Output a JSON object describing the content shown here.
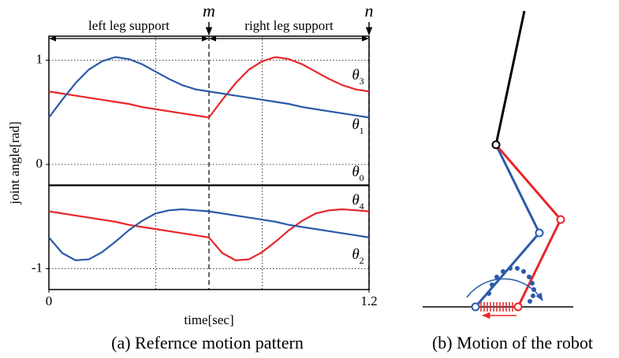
{
  "chart_data": {
    "type": "line",
    "x": [
      0,
      0.05,
      0.1,
      0.15,
      0.2,
      0.25,
      0.3,
      0.35,
      0.4,
      0.45,
      0.5,
      0.55,
      0.6,
      0.65,
      0.7,
      0.75,
      0.8,
      0.85,
      0.9,
      0.95,
      1.0,
      1.05,
      1.1,
      1.15,
      1.2
    ],
    "series": [
      {
        "name": "θ3",
        "color": "#e8262a",
        "values": [
          0.7,
          0.68,
          0.66,
          0.64,
          0.62,
          0.6,
          0.58,
          0.55,
          0.53,
          0.51,
          0.49,
          0.47,
          0.45,
          0.62,
          0.78,
          0.91,
          0.99,
          1.03,
          1.01,
          0.96,
          0.89,
          0.82,
          0.76,
          0.72,
          0.7
        ]
      },
      {
        "name": "θ1",
        "color": "#2a5aa8",
        "values": [
          0.45,
          0.62,
          0.78,
          0.91,
          0.99,
          1.03,
          1.01,
          0.96,
          0.89,
          0.82,
          0.76,
          0.72,
          0.7,
          0.68,
          0.66,
          0.64,
          0.62,
          0.6,
          0.58,
          0.55,
          0.53,
          0.51,
          0.49,
          0.47,
          0.45
        ]
      },
      {
        "name": "θ0",
        "color": "#000000",
        "values": [
          -0.2,
          -0.2,
          -0.2,
          -0.2,
          -0.2,
          -0.2,
          -0.2,
          -0.2,
          -0.2,
          -0.2,
          -0.2,
          -0.2,
          -0.2,
          -0.2,
          -0.2,
          -0.2,
          -0.2,
          -0.2,
          -0.2,
          -0.2,
          -0.2,
          -0.2,
          -0.2,
          -0.2,
          -0.2
        ]
      },
      {
        "name": "θ4",
        "color": "#e8262a",
        "values": [
          -0.45,
          -0.47,
          -0.49,
          -0.51,
          -0.53,
          -0.55,
          -0.58,
          -0.6,
          -0.62,
          -0.64,
          -0.66,
          -0.68,
          -0.7,
          -0.85,
          -0.92,
          -0.91,
          -0.84,
          -0.74,
          -0.63,
          -0.54,
          -0.47,
          -0.44,
          -0.43,
          -0.44,
          -0.45
        ]
      },
      {
        "name": "θ2",
        "color": "#2a5aa8",
        "values": [
          -0.7,
          -0.85,
          -0.92,
          -0.91,
          -0.84,
          -0.74,
          -0.63,
          -0.54,
          -0.47,
          -0.44,
          -0.43,
          -0.44,
          -0.45,
          -0.47,
          -0.49,
          -0.51,
          -0.53,
          -0.55,
          -0.58,
          -0.6,
          -0.62,
          -0.64,
          -0.66,
          -0.68,
          -0.7
        ]
      }
    ],
    "xlabel": "time[sec]",
    "ylabel": "joint angle[rad]",
    "xlim": [
      0,
      1.2
    ],
    "ylim": [
      -1.2,
      1.23
    ],
    "xticks": [
      0,
      1.2
    ],
    "yticks": [
      -1,
      0,
      1
    ],
    "xgrid": [
      0.4,
      0.8
    ],
    "grid": true,
    "markers": [
      {
        "x": 0.6,
        "label": "m"
      },
      {
        "x": 1.2,
        "label": "n"
      }
    ],
    "phases": [
      {
        "label": "left leg support",
        "start": 0,
        "end": 0.6
      },
      {
        "label": "right leg support",
        "start": 0.6,
        "end": 1.2
      }
    ]
  },
  "captions": [
    "(a) Refernce motion pattern",
    "(b) Motion of the robot"
  ]
}
